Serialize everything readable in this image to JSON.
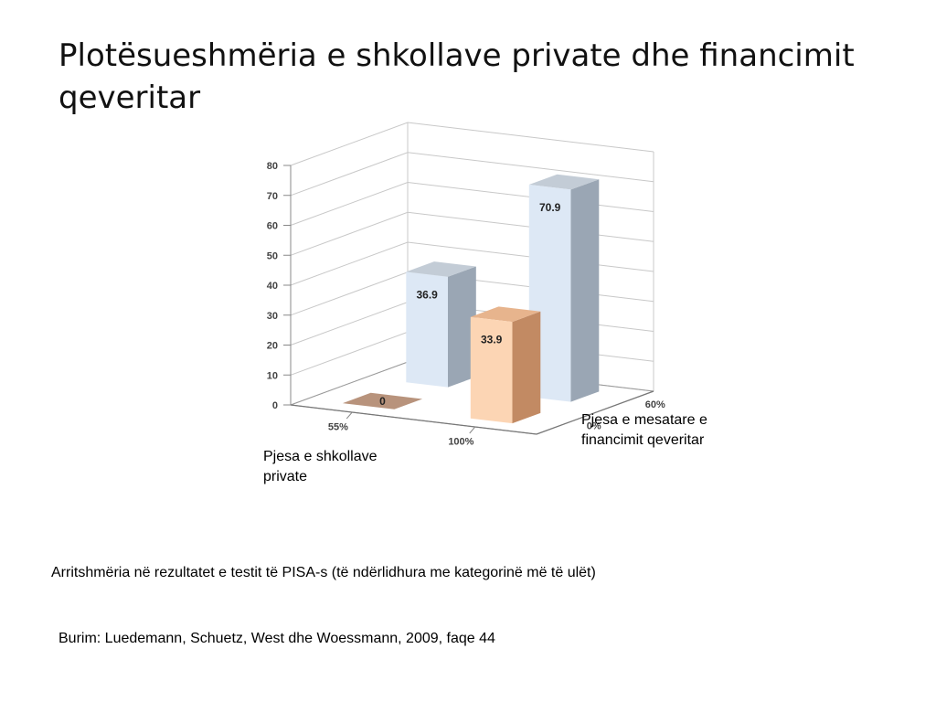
{
  "title": "Plotësueshmëria e shkollave private dhe financimit qeveritar",
  "caption": "Arritshmëria në rezultatet e testit të PISA-s (të ndërlidhura me kategorinë më të ulët)",
  "source": "Burim: Luedemann, Schuetz, West dhe Woessmann, 2009, faqe 44",
  "colors": {
    "blue_front": "#dde8f5",
    "blue_side": "#9aa6b4",
    "blue_top": "#c3ccd6",
    "orange_front": "#fcd5b4",
    "orange_side": "#c28a63",
    "orange_top": "#e7b48d",
    "brown_flat": "#b8937c",
    "grid": "#c8c8c8"
  },
  "chart_data": {
    "type": "bar",
    "title": "",
    "zlim": [
      0,
      80
    ],
    "z_ticks": [
      "0",
      "10",
      "20",
      "30",
      "40",
      "50",
      "60",
      "70",
      "80"
    ],
    "x_axis": {
      "label": "Pjesa e shkollave private",
      "categories": [
        "55%",
        "100%"
      ]
    },
    "y_axis": {
      "label": "Pjesa e mesatare e financimit qeveritar",
      "categories": [
        "0%",
        "60%"
      ]
    },
    "bars": [
      {
        "x": "55%",
        "y": "0%",
        "value": 0,
        "label": "0",
        "color": "brown"
      },
      {
        "x": "100%",
        "y": "0%",
        "value": 33.9,
        "label": "33.9",
        "color": "orange"
      },
      {
        "x": "55%",
        "y": "60%",
        "value": 36.9,
        "label": "36.9",
        "color": "blue"
      },
      {
        "x": "100%",
        "y": "60%",
        "value": 70.9,
        "label": "70.9",
        "color": "blue"
      }
    ],
    "grid": true
  }
}
